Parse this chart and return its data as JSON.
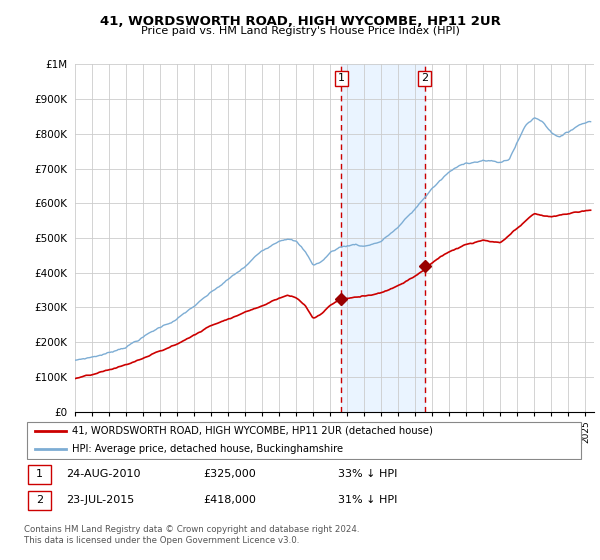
{
  "title": "41, WORDSWORTH ROAD, HIGH WYCOMBE, HP11 2UR",
  "subtitle": "Price paid vs. HM Land Registry's House Price Index (HPI)",
  "hpi_label": "HPI: Average price, detached house, Buckinghamshire",
  "price_label": "41, WORDSWORTH ROAD, HIGH WYCOMBE, HP11 2UR (detached house)",
  "sale1_date": "24-AUG-2010",
  "sale1_price": 325000,
  "sale1_pct": "33%",
  "sale2_date": "23-JUL-2015",
  "sale2_price": 418000,
  "sale2_pct": "31%",
  "hpi_color": "#7dadd4",
  "price_color": "#cc0000",
  "sale_marker_color": "#990000",
  "vline_color": "#cc0000",
  "shade_color": "#ddeeff",
  "ylim": [
    0,
    1000000
  ],
  "yticks": [
    0,
    100000,
    200000,
    300000,
    400000,
    500000,
    600000,
    700000,
    800000,
    900000,
    1000000
  ],
  "ytick_labels": [
    "£0",
    "£100K",
    "£200K",
    "£300K",
    "£400K",
    "£500K",
    "£600K",
    "£700K",
    "£800K",
    "£900K",
    "£1M"
  ],
  "footnote": "Contains HM Land Registry data © Crown copyright and database right 2024.\nThis data is licensed under the Open Government Licence v3.0.",
  "sale1_year": 2010.65,
  "sale2_year": 2015.55,
  "sale1_price_val": 325000,
  "sale2_price_val": 418000,
  "xlim_start": 1995,
  "xlim_end": 2025.5,
  "hpi_key_years": [
    1995,
    1996,
    1997,
    1998,
    1999,
    2000,
    2001,
    2002,
    2003,
    2004,
    2005,
    2006,
    2007,
    2007.5,
    2008,
    2008.5,
    2009,
    2009.5,
    2010,
    2010.5,
    2011,
    2011.5,
    2012,
    2013,
    2014,
    2015,
    2016,
    2017,
    2018,
    2019,
    2020,
    2020.5,
    2021,
    2021.5,
    2022,
    2022.5,
    2023,
    2023.5,
    2024,
    2024.5,
    2025.3
  ],
  "hpi_key_vals": [
    148000,
    158000,
    170000,
    190000,
    218000,
    245000,
    270000,
    305000,
    340000,
    375000,
    410000,
    455000,
    490000,
    500000,
    490000,
    460000,
    420000,
    430000,
    455000,
    470000,
    475000,
    480000,
    475000,
    490000,
    530000,
    580000,
    640000,
    685000,
    710000,
    720000,
    710000,
    720000,
    770000,
    820000,
    840000,
    830000,
    800000,
    790000,
    800000,
    820000,
    835000
  ],
  "price_key_years": [
    1995,
    1996,
    1997,
    1998,
    1999,
    2000,
    2001,
    2002,
    2003,
    2004,
    2005,
    2006,
    2007,
    2007.5,
    2008,
    2008.5,
    2009,
    2009.5,
    2010,
    2010.5,
    2011,
    2012,
    2013,
    2014,
    2015,
    2015.5,
    2016,
    2017,
    2018,
    2019,
    2020,
    2021,
    2022,
    2023,
    2024,
    2025.3
  ],
  "price_key_vals": [
    95000,
    103000,
    115000,
    130000,
    148000,
    168000,
    188000,
    215000,
    242000,
    265000,
    285000,
    305000,
    330000,
    338000,
    330000,
    310000,
    272000,
    285000,
    310000,
    325000,
    330000,
    335000,
    348000,
    370000,
    400000,
    418000,
    440000,
    470000,
    490000,
    500000,
    490000,
    530000,
    570000,
    560000,
    570000,
    580000
  ]
}
